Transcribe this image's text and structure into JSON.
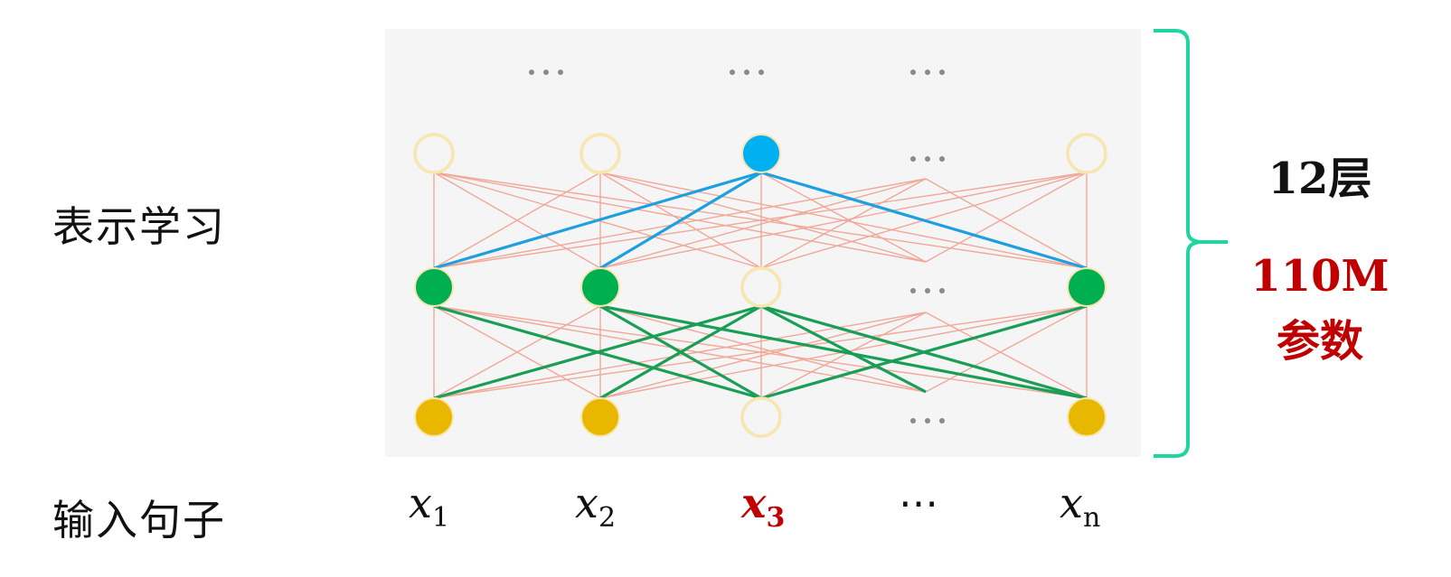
{
  "labels": {
    "representation": "表示学习",
    "input": "输入句子"
  },
  "stats": {
    "layers": "12层",
    "params_line1": "110M",
    "params_line2": "参数"
  },
  "tokens": {
    "x1": {
      "base": "x",
      "sub": "1"
    },
    "x2": {
      "base": "x",
      "sub": "2"
    },
    "x3": {
      "base": "x",
      "sub": "3"
    },
    "ellipsis": "⋯",
    "xn": {
      "base": "x",
      "sub": "n"
    }
  },
  "colors": {
    "panel_bg": "#f5f5f5",
    "bracket": "#1fd6a0",
    "node_input_filled": "#e8b800",
    "node_hidden_filled": "#00b050",
    "node_top_filled": "#00b0f0",
    "node_empty_stroke": "#f7e6b0",
    "thin_edge": "#f0a898",
    "green_edge": "#1a9e55",
    "blue_edge": "#1ea0e0",
    "ellipsis_dots": "#8a8a8a",
    "params_text": "#c00000",
    "layers_text": "#111111"
  }
}
